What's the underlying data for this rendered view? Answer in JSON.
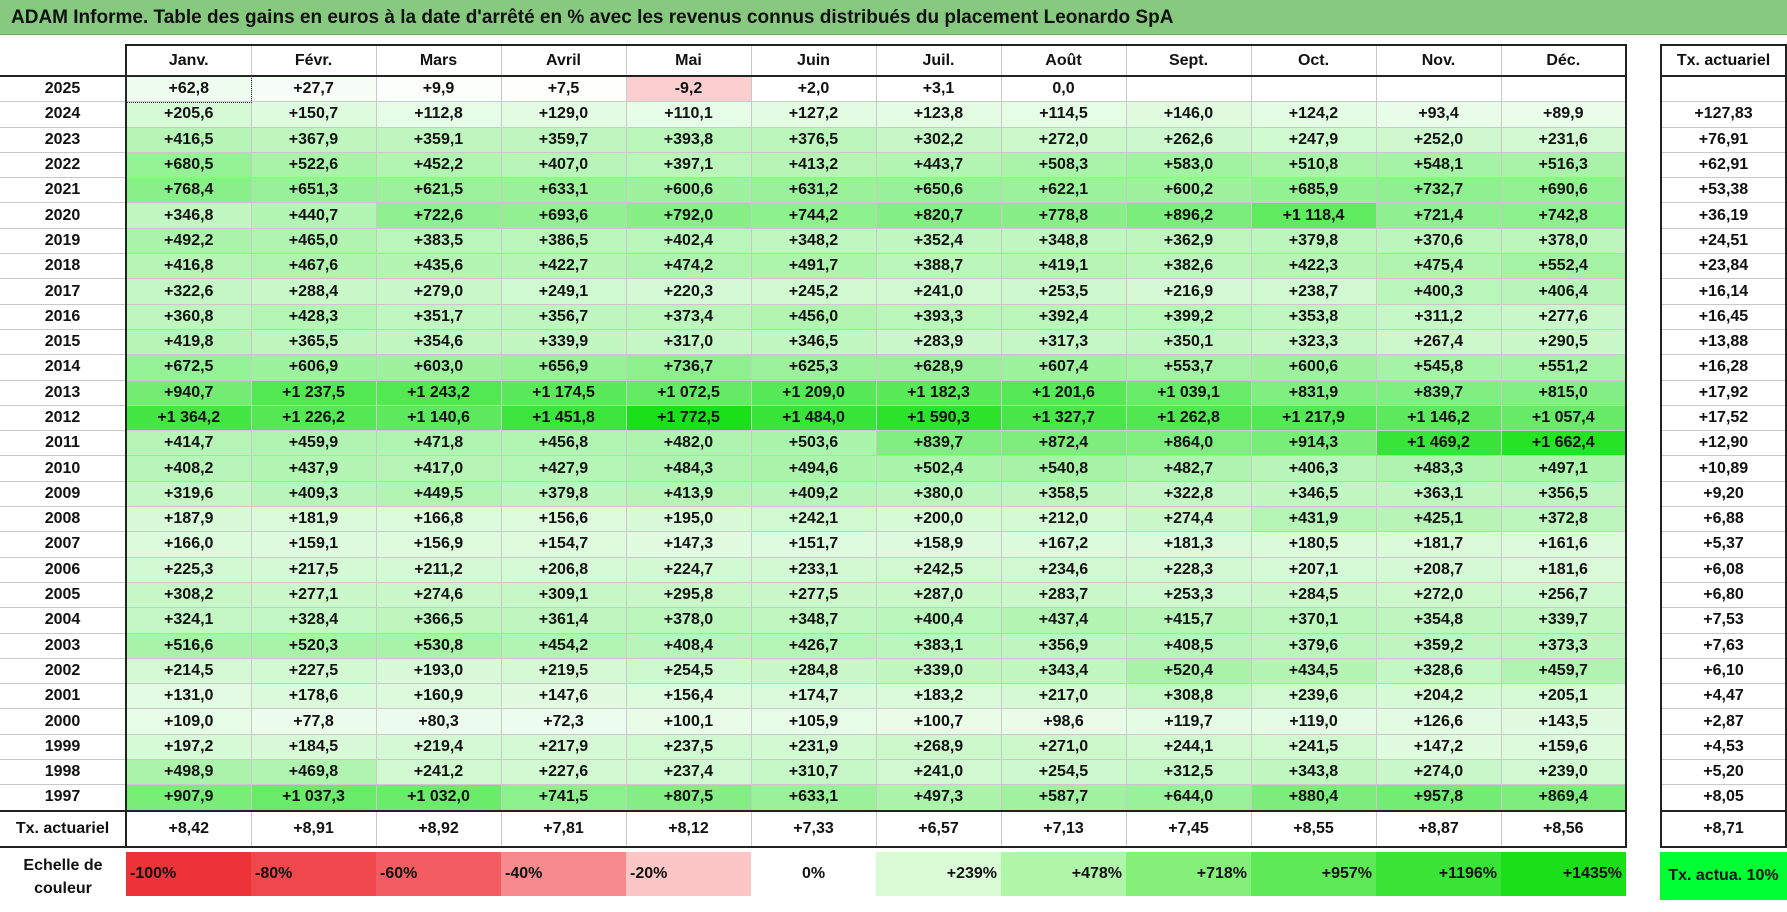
{
  "title": "ADAM Informe. Table des gains en euros à la date d'arrêté en % avec les revenus connus distribués du placement Leonardo SpA",
  "months": [
    "Janv.",
    "Févr.",
    "Mars",
    "Avril",
    "Mai",
    "Juin",
    "Juil.",
    "Août",
    "Sept.",
    "Oct.",
    "Nov.",
    "Déc."
  ],
  "annual_header": "Tx. actuariel",
  "rows": [
    {
      "year": "2025",
      "values": [
        "+62,8",
        "+27,7",
        "+9,9",
        "+7,5",
        "-9,2",
        "+2,0",
        "+3,1",
        "0,0",
        "",
        "",
        "",
        ""
      ],
      "actuarial": ""
    },
    {
      "year": "2024",
      "values": [
        "+205,6",
        "+150,7",
        "+112,8",
        "+129,0",
        "+110,1",
        "+127,2",
        "+123,8",
        "+114,5",
        "+146,0",
        "+124,2",
        "+93,4",
        "+89,9"
      ],
      "actuarial": "+127,83"
    },
    {
      "year": "2023",
      "values": [
        "+416,5",
        "+367,9",
        "+359,1",
        "+359,7",
        "+393,8",
        "+376,5",
        "+302,2",
        "+272,0",
        "+262,6",
        "+247,9",
        "+252,0",
        "+231,6"
      ],
      "actuarial": "+76,91"
    },
    {
      "year": "2022",
      "values": [
        "+680,5",
        "+522,6",
        "+452,2",
        "+407,0",
        "+397,1",
        "+413,2",
        "+443,7",
        "+508,3",
        "+583,0",
        "+510,8",
        "+548,1",
        "+516,3"
      ],
      "actuarial": "+62,91"
    },
    {
      "year": "2021",
      "values": [
        "+768,4",
        "+651,3",
        "+621,5",
        "+633,1",
        "+600,6",
        "+631,2",
        "+650,6",
        "+622,1",
        "+600,2",
        "+685,9",
        "+732,7",
        "+690,6"
      ],
      "actuarial": "+53,38"
    },
    {
      "year": "2020",
      "values": [
        "+346,8",
        "+440,7",
        "+722,6",
        "+693,6",
        "+792,0",
        "+744,2",
        "+820,7",
        "+778,8",
        "+896,2",
        "+1 118,4",
        "+721,4",
        "+742,8"
      ],
      "actuarial": "+36,19"
    },
    {
      "year": "2019",
      "values": [
        "+492,2",
        "+465,0",
        "+383,5",
        "+386,5",
        "+402,4",
        "+348,2",
        "+352,4",
        "+348,8",
        "+362,9",
        "+379,8",
        "+370,6",
        "+378,0"
      ],
      "actuarial": "+24,51"
    },
    {
      "year": "2018",
      "values": [
        "+416,8",
        "+467,6",
        "+435,6",
        "+422,7",
        "+474,2",
        "+491,7",
        "+388,7",
        "+419,1",
        "+382,6",
        "+422,3",
        "+475,4",
        "+552,4"
      ],
      "actuarial": "+23,84"
    },
    {
      "year": "2017",
      "values": [
        "+322,6",
        "+288,4",
        "+279,0",
        "+249,1",
        "+220,3",
        "+245,2",
        "+241,0",
        "+253,5",
        "+216,9",
        "+238,7",
        "+400,3",
        "+406,4"
      ],
      "actuarial": "+16,14"
    },
    {
      "year": "2016",
      "values": [
        "+360,8",
        "+428,3",
        "+351,7",
        "+356,7",
        "+373,4",
        "+456,0",
        "+393,3",
        "+392,4",
        "+399,2",
        "+353,8",
        "+311,2",
        "+277,6"
      ],
      "actuarial": "+16,45"
    },
    {
      "year": "2015",
      "values": [
        "+419,8",
        "+365,5",
        "+354,6",
        "+339,9",
        "+317,0",
        "+346,5",
        "+283,9",
        "+317,3",
        "+350,1",
        "+323,3",
        "+267,4",
        "+290,5"
      ],
      "actuarial": "+13,88"
    },
    {
      "year": "2014",
      "values": [
        "+672,5",
        "+606,9",
        "+603,0",
        "+656,9",
        "+736,7",
        "+625,3",
        "+628,9",
        "+607,4",
        "+553,7",
        "+600,6",
        "+545,8",
        "+551,2"
      ],
      "actuarial": "+16,28"
    },
    {
      "year": "2013",
      "values": [
        "+940,7",
        "+1 237,5",
        "+1 243,2",
        "+1 174,5",
        "+1 072,5",
        "+1 209,0",
        "+1 182,3",
        "+1 201,6",
        "+1 039,1",
        "+831,9",
        "+839,7",
        "+815,0"
      ],
      "actuarial": "+17,92"
    },
    {
      "year": "2012",
      "values": [
        "+1 364,2",
        "+1 226,2",
        "+1 140,6",
        "+1 451,8",
        "+1 772,5",
        "+1 484,0",
        "+1 590,3",
        "+1 327,7",
        "+1 262,8",
        "+1 217,9",
        "+1 146,2",
        "+1 057,4"
      ],
      "actuarial": "+17,52"
    },
    {
      "year": "2011",
      "values": [
        "+414,7",
        "+459,9",
        "+471,8",
        "+456,8",
        "+482,0",
        "+503,6",
        "+839,7",
        "+872,4",
        "+864,0",
        "+914,3",
        "+1 469,2",
        "+1 662,4"
      ],
      "actuarial": "+12,90"
    },
    {
      "year": "2010",
      "values": [
        "+408,2",
        "+437,9",
        "+417,0",
        "+427,9",
        "+484,3",
        "+494,6",
        "+502,4",
        "+540,8",
        "+482,7",
        "+406,3",
        "+483,3",
        "+497,1"
      ],
      "actuarial": "+10,89"
    },
    {
      "year": "2009",
      "values": [
        "+319,6",
        "+409,3",
        "+449,5",
        "+379,8",
        "+413,9",
        "+409,2",
        "+380,0",
        "+358,5",
        "+322,8",
        "+346,5",
        "+363,1",
        "+356,5"
      ],
      "actuarial": "+9,20"
    },
    {
      "year": "2008",
      "values": [
        "+187,9",
        "+181,9",
        "+166,8",
        "+156,6",
        "+195,0",
        "+242,1",
        "+200,0",
        "+212,0",
        "+274,4",
        "+431,9",
        "+425,1",
        "+372,8"
      ],
      "actuarial": "+6,88"
    },
    {
      "year": "2007",
      "values": [
        "+166,0",
        "+159,1",
        "+156,9",
        "+154,7",
        "+147,3",
        "+151,7",
        "+158,9",
        "+167,2",
        "+181,3",
        "+180,5",
        "+181,7",
        "+161,6"
      ],
      "actuarial": "+5,37"
    },
    {
      "year": "2006",
      "values": [
        "+225,3",
        "+217,5",
        "+211,2",
        "+206,8",
        "+224,7",
        "+233,1",
        "+242,5",
        "+234,6",
        "+228,3",
        "+207,1",
        "+208,7",
        "+181,6"
      ],
      "actuarial": "+6,08"
    },
    {
      "year": "2005",
      "values": [
        "+308,2",
        "+277,1",
        "+274,6",
        "+309,1",
        "+295,8",
        "+277,5",
        "+287,0",
        "+283,7",
        "+253,3",
        "+284,5",
        "+272,0",
        "+256,7"
      ],
      "actuarial": "+6,80"
    },
    {
      "year": "2004",
      "values": [
        "+324,1",
        "+328,4",
        "+366,5",
        "+361,4",
        "+378,0",
        "+348,7",
        "+400,4",
        "+437,4",
        "+415,7",
        "+370,1",
        "+354,8",
        "+339,7"
      ],
      "actuarial": "+7,53"
    },
    {
      "year": "2003",
      "values": [
        "+516,6",
        "+520,3",
        "+530,8",
        "+454,2",
        "+408,4",
        "+426,7",
        "+383,1",
        "+356,9",
        "+408,5",
        "+379,6",
        "+359,2",
        "+373,3"
      ],
      "actuarial": "+7,63"
    },
    {
      "year": "2002",
      "values": [
        "+214,5",
        "+227,5",
        "+193,0",
        "+219,5",
        "+254,5",
        "+284,8",
        "+339,0",
        "+343,4",
        "+520,4",
        "+434,5",
        "+328,6",
        "+459,7"
      ],
      "actuarial": "+6,10"
    },
    {
      "year": "2001",
      "values": [
        "+131,0",
        "+178,6",
        "+160,9",
        "+147,6",
        "+156,4",
        "+174,7",
        "+183,2",
        "+217,0",
        "+308,8",
        "+239,6",
        "+204,2",
        "+205,1"
      ],
      "actuarial": "+4,47"
    },
    {
      "year": "2000",
      "values": [
        "+109,0",
        "+77,8",
        "+80,3",
        "+72,3",
        "+100,1",
        "+105,9",
        "+100,7",
        "+98,6",
        "+119,7",
        "+119,0",
        "+126,6",
        "+143,5"
      ],
      "actuarial": "+2,87"
    },
    {
      "year": "1999",
      "values": [
        "+197,2",
        "+184,5",
        "+219,4",
        "+217,9",
        "+237,5",
        "+231,9",
        "+268,9",
        "+271,0",
        "+244,1",
        "+241,5",
        "+147,2",
        "+159,6"
      ],
      "actuarial": "+4,53"
    },
    {
      "year": "1998",
      "values": [
        "+498,9",
        "+469,8",
        "+241,2",
        "+227,6",
        "+237,4",
        "+310,7",
        "+241,0",
        "+254,5",
        "+312,5",
        "+343,8",
        "+274,0",
        "+239,0"
      ],
      "actuarial": "+5,20"
    },
    {
      "year": "1997",
      "values": [
        "+907,9",
        "+1 037,3",
        "+1 032,0",
        "+741,5",
        "+807,5",
        "+633,1",
        "+497,3",
        "+587,7",
        "+644,0",
        "+880,4",
        "+957,8",
        "+869,4"
      ],
      "actuarial": "+8,05"
    }
  ],
  "footer": {
    "label": "Tx. actuariel",
    "values": [
      "+8,42",
      "+8,91",
      "+8,92",
      "+7,81",
      "+8,12",
      "+7,33",
      "+6,57",
      "+7,13",
      "+7,45",
      "+8,55",
      "+8,87",
      "+8,56"
    ],
    "actuarial": "+8,71"
  },
  "legend": {
    "label": "Echelle de couleur",
    "scale": [
      {
        "label": "-100%",
        "color": "#ee3338",
        "align": "left"
      },
      {
        "label": "-80%",
        "color": "#f0474c",
        "align": "left"
      },
      {
        "label": "-60%",
        "color": "#f35c60",
        "align": "left"
      },
      {
        "label": "-40%",
        "color": "#f68a8d",
        "align": "left"
      },
      {
        "label": "-20%",
        "color": "#fcc6c7",
        "align": "left"
      },
      {
        "label": "0%",
        "color": "#ffffff",
        "align": "center"
      },
      {
        "label": "+239%",
        "color": "#d9fcd6",
        "align": "right"
      },
      {
        "label": "+478%",
        "color": "#b0f6a9",
        "align": "right"
      },
      {
        "label": "+718%",
        "color": "#84f07a",
        "align": "right"
      },
      {
        "label": "+957%",
        "color": "#5ee956",
        "align": "right"
      },
      {
        "label": "+1196%",
        "color": "#3ae436",
        "align": "right"
      },
      {
        "label": "+1435%",
        "color": "#19e019",
        "align": "right"
      }
    ],
    "actuarial_label": "Tx. actua. 10%",
    "actuarial_color": "#00ff33"
  },
  "colors": {
    "title_bar": "#86c97f",
    "zero": "#ffffff",
    "max_positive": "#19e019",
    "max_negative": "#ee3338"
  }
}
